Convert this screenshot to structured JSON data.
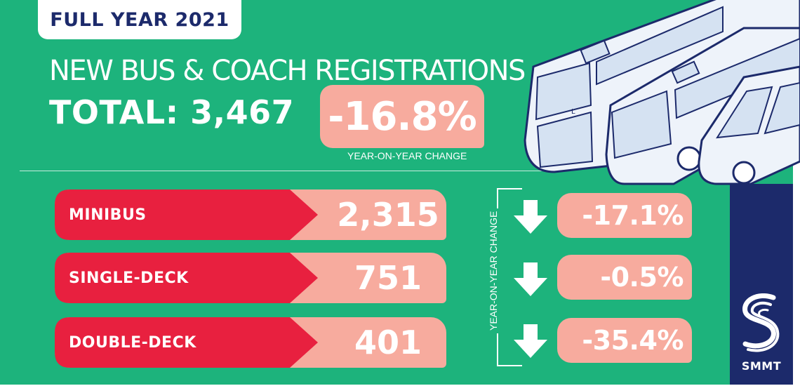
{
  "badge": "FULL YEAR 2021",
  "headline": "NEW BUS & COACH REGISTRATIONS",
  "total": "TOTAL: 3,467",
  "total_change": "-16.8%",
  "total_change_caption": "YEAR-ON-YEAR CHANGE",
  "bracket_label": "YEAR-ON-YEAR CHANGE",
  "rows": [
    {
      "label": "MINIBUS",
      "value": "2,315",
      "change": "-17.1%"
    },
    {
      "label": "SINGLE-DECK",
      "value": "751",
      "change": "-0.5%"
    },
    {
      "label": "DOUBLE-DECK",
      "value": "401",
      "change": "-35.4%"
    }
  ],
  "logo_text": "SMMT",
  "bus_marking": "L",
  "icons": [
    "down-arrow-icon",
    "smmt-logo-icon",
    "bus-illustration"
  ],
  "colors": {
    "background": "#1db37c",
    "badge_text": "#1c2a6b",
    "label_red": "#e8203f",
    "value_pink": "#f7ab9e",
    "navy": "#1c2a6b",
    "white": "#ffffff"
  }
}
